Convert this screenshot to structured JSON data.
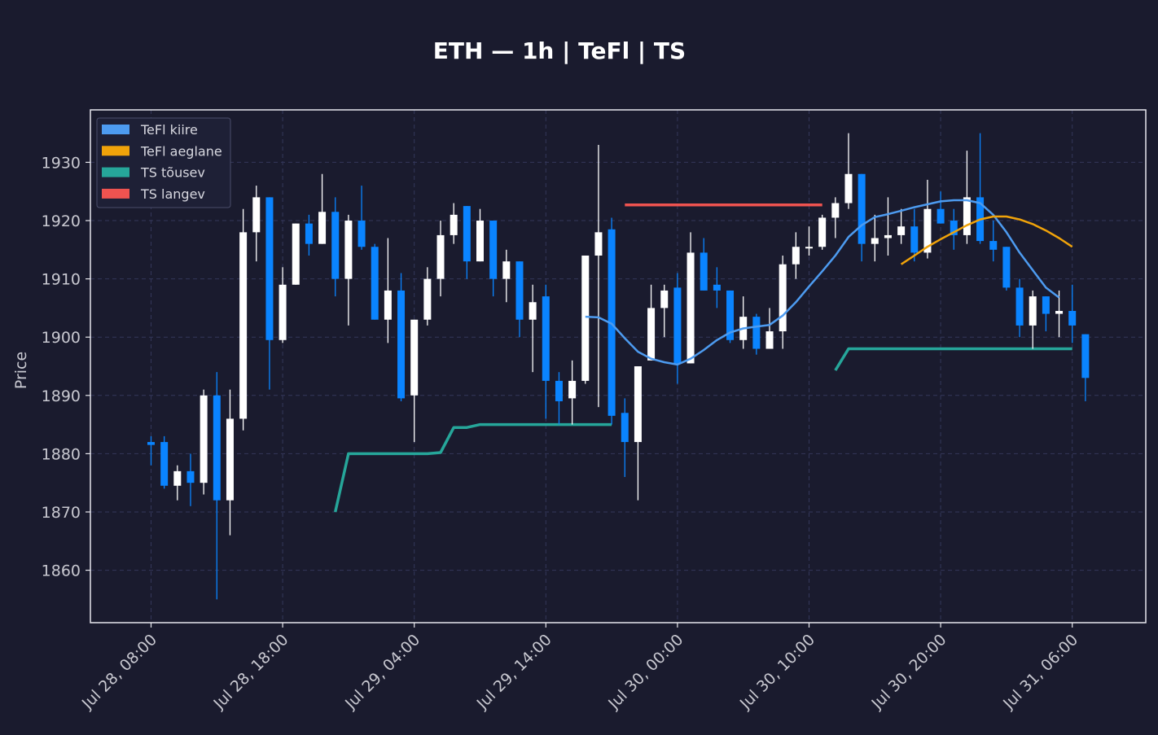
{
  "chart_data": {
    "type": "candlestick",
    "title": "ETH — 1h  |  TeFl  |  TS",
    "ylabel": "Price",
    "ylim": [
      1851,
      1939
    ],
    "yticks": [
      1860,
      1870,
      1880,
      1890,
      1900,
      1910,
      1920,
      1930
    ],
    "start_time": "2023-07-28 08:00",
    "interval_hours": 1,
    "xtick_labels": [
      "Jul 28, 08:00",
      "Jul 28, 18:00",
      "Jul 29, 04:00",
      "Jul 29, 14:00",
      "Jul 30, 00:00",
      "Jul 30, 10:00",
      "Jul 30, 20:00",
      "Jul 31, 06:00"
    ],
    "xtick_index": [
      0,
      10,
      20,
      30,
      40,
      50,
      60,
      70
    ],
    "grid": true,
    "legend_position": "top-left",
    "colors": {
      "background": "#1a1b2e",
      "up": "#ffffff",
      "down": "#0a84ff",
      "fast": "#4d9bf0",
      "slow": "#f0a30a",
      "ts_up": "#26a69a",
      "ts_down": "#ef5350",
      "frame": "#e8e8ee",
      "grid": "#34375a"
    },
    "candles": [
      [
        1882,
        1883,
        1878,
        1881.5
      ],
      [
        1882,
        1883,
        1874,
        1874.5
      ],
      [
        1874.5,
        1878,
        1872,
        1877
      ],
      [
        1877,
        1880,
        1871,
        1875
      ],
      [
        1875,
        1891,
        1873,
        1890
      ],
      [
        1890,
        1894,
        1855,
        1872
      ],
      [
        1872,
        1891,
        1866,
        1886
      ],
      [
        1886,
        1922,
        1884,
        1918
      ],
      [
        1918,
        1926,
        1913,
        1924
      ],
      [
        1924,
        1924,
        1891,
        1899.5
      ],
      [
        1899.5,
        1912,
        1899,
        1909
      ],
      [
        1909,
        1919.5,
        1909,
        1919.5
      ],
      [
        1919.5,
        1921,
        1914,
        1916
      ],
      [
        1916,
        1928,
        1916,
        1921.5
      ],
      [
        1921.5,
        1924,
        1907,
        1910
      ],
      [
        1910,
        1921,
        1902,
        1920
      ],
      [
        1920,
        1926,
        1915,
        1915.5
      ],
      [
        1915.5,
        1916,
        1903,
        1903
      ],
      [
        1903,
        1917,
        1899,
        1908
      ],
      [
        1908,
        1911,
        1889,
        1889.5
      ],
      [
        1890,
        1903,
        1882,
        1903
      ],
      [
        1903,
        1912,
        1902,
        1910
      ],
      [
        1910,
        1920,
        1907,
        1917.5
      ],
      [
        1917.5,
        1923,
        1916,
        1921
      ],
      [
        1922.5,
        1922.5,
        1910,
        1913
      ],
      [
        1913,
        1922,
        1913,
        1920
      ],
      [
        1920,
        1920,
        1907,
        1910
      ],
      [
        1910,
        1915,
        1906,
        1913
      ],
      [
        1913,
        1913,
        1900,
        1903
      ],
      [
        1903,
        1909,
        1894,
        1906
      ],
      [
        1907,
        1909,
        1886,
        1892.5
      ],
      [
        1892.5,
        1894,
        1885,
        1889
      ],
      [
        1889.5,
        1896,
        1885,
        1892.5
      ],
      [
        1892.5,
        1914,
        1892,
        1914
      ],
      [
        1914,
        1933,
        1888,
        1918
      ],
      [
        1918.5,
        1920.5,
        1885,
        1886.5
      ],
      [
        1887,
        1889.5,
        1876,
        1882
      ],
      [
        1882,
        1895,
        1872,
        1895
      ],
      [
        1896,
        1909,
        1896,
        1905
      ],
      [
        1905,
        1909,
        1900,
        1908
      ],
      [
        1908.5,
        1911,
        1892,
        1895.5
      ],
      [
        1895.5,
        1918,
        1895.5,
        1914.5
      ],
      [
        1914.5,
        1917,
        1908,
        1908
      ],
      [
        1909,
        1912,
        1905,
        1908
      ],
      [
        1908,
        1908,
        1899,
        1899.5
      ],
      [
        1899.5,
        1907,
        1898,
        1903.5
      ],
      [
        1903.5,
        1904,
        1897,
        1898
      ],
      [
        1898,
        1905,
        1898,
        1901
      ],
      [
        1901,
        1914,
        1898,
        1912.5
      ],
      [
        1912.5,
        1918,
        1910,
        1915.5
      ],
      [
        1915.5,
        1919,
        1914,
        1915.5
      ],
      [
        1915.5,
        1921,
        1915,
        1920.5
      ],
      [
        1920.5,
        1924,
        1917,
        1923
      ],
      [
        1923,
        1935,
        1922,
        1928
      ],
      [
        1928,
        1928,
        1913,
        1916
      ],
      [
        1916,
        1921,
        1913,
        1917
      ],
      [
        1917,
        1924,
        1914,
        1917.5
      ],
      [
        1917.5,
        1922,
        1916,
        1919
      ],
      [
        1919,
        1922,
        1913,
        1914.5
      ],
      [
        1914.5,
        1927,
        1913.5,
        1922
      ],
      [
        1922,
        1925,
        1919.5,
        1919.5
      ],
      [
        1920,
        1922,
        1915,
        1917.5
      ],
      [
        1917.5,
        1932,
        1916,
        1924
      ],
      [
        1924,
        1935,
        1916,
        1916.5
      ],
      [
        1916.5,
        1920,
        1913,
        1915
      ],
      [
        1915.5,
        1915.5,
        1908,
        1908.5
      ],
      [
        1908.5,
        1910,
        1900,
        1902
      ],
      [
        1902,
        1908,
        1898,
        1907
      ],
      [
        1907,
        1907,
        1901,
        1904
      ],
      [
        1904,
        1908,
        1900,
        1904.5
      ],
      [
        1904.5,
        1909,
        1899,
        1902
      ],
      [
        1900.5,
        1900.5,
        1889,
        1893
      ]
    ],
    "series": [
      {
        "name": "TeFl kiire",
        "role": "fast",
        "start_index": 33,
        "values": [
          1903.5,
          1903.4,
          1902.3,
          1899.8,
          1897.5,
          1896.3,
          1895.7,
          1895.3,
          1896.3,
          1897.8,
          1899.5,
          1900.8,
          1901.5,
          1901.8,
          1902.1,
          1903.7,
          1906.0,
          1908.7,
          1911.3,
          1914.0,
          1917.2,
          1919.2,
          1920.6,
          1921.1,
          1921.7,
          1922.3,
          1922.8,
          1923.3,
          1923.5,
          1923.5,
          1923.0,
          1921.0,
          1918.0,
          1914.5,
          1911.5,
          1908.5,
          1906.8
        ]
      },
      {
        "name": "TeFl aeglane",
        "role": "slow",
        "start_index": 57,
        "values": [
          1912.5,
          1914.0,
          1915.5,
          1916.8,
          1918.0,
          1919.2,
          1920.2,
          1920.7,
          1920.7,
          1920.2,
          1919.4,
          1918.3,
          1917.0,
          1915.5
        ]
      },
      {
        "name": "TS tõusev",
        "role": "ts_up",
        "segments": [
          {
            "start_index": 14,
            "values": [
              1870,
              1880,
              1880,
              1880,
              1880,
              1880,
              1880,
              1880,
              1880.2,
              1884.5,
              1884.5,
              1885,
              1885,
              1885,
              1885,
              1885,
              1885,
              1885,
              1885,
              1885,
              1885,
              1885
            ]
          },
          {
            "start_index": 52,
            "values": [
              1894.3,
              1898,
              1898,
              1898,
              1898,
              1898,
              1898,
              1898,
              1898,
              1898,
              1898,
              1898,
              1898,
              1898,
              1898,
              1898,
              1898,
              1898,
              1898
            ]
          }
        ]
      },
      {
        "name": "TS langev",
        "role": "ts_down",
        "segments": [
          {
            "start_index": 36,
            "values": [
              1922.7,
              1922.7,
              1922.7,
              1922.7,
              1922.7,
              1922.7,
              1922.7,
              1922.7,
              1922.7,
              1922.7,
              1922.7,
              1922.7,
              1922.7,
              1922.7,
              1922.7,
              1922.7
            ]
          }
        ]
      }
    ],
    "legend": [
      {
        "label": "TeFl kiire",
        "color": "#4d9bf0"
      },
      {
        "label": "TeFl aeglane",
        "color": "#f0a30a"
      },
      {
        "label": "TS tõusev",
        "color": "#26a69a"
      },
      {
        "label": "TS langev",
        "color": "#ef5350"
      }
    ]
  }
}
